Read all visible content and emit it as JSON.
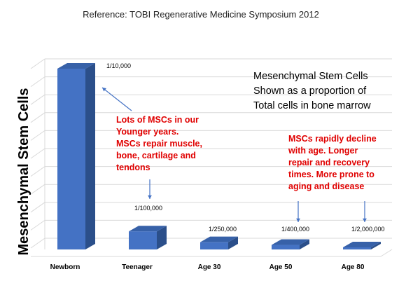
{
  "chart_data": {
    "type": "bar",
    "title": "Reference: TOBI Regenerative Medicine Symposium 2012",
    "ylabel": "Mesenchymal Stem Cells",
    "xlabel": "",
    "categories": [
      "Newborn",
      "Teenager",
      "Age 30",
      "Age 50",
      "Age 80"
    ],
    "values": [
      100000,
      10000,
      4000,
      2500,
      500
    ],
    "ylim": [
      0,
      100000
    ],
    "scale_note": "bar height shows MSCs per 1,000,000,000 total bone marrow cells",
    "value_labels": [
      "1/10,000",
      "1/100,000",
      "1/250,000",
      "1/400,000",
      "1/2,000,000"
    ],
    "grid": true,
    "legend": "none",
    "annotations": [
      {
        "id": "description",
        "lines": [
          "Mesenchymal Stem Cells",
          "Shown as a proportion of",
          "Total cells in bone marrow"
        ],
        "color": "#000000"
      },
      {
        "id": "young",
        "lines": [
          "Lots of MSCs in our",
          "Younger years.",
          "MSCs repair muscle,",
          "bone, cartilage and",
          "tendons"
        ],
        "color": "#e00000"
      },
      {
        "id": "decline",
        "lines": [
          "MSCs rapidly decline",
          "with age. Longer",
          "repair and recovery",
          "times. More prone to",
          "aging and disease"
        ],
        "color": "#e00000"
      }
    ]
  },
  "colors": {
    "bar_front": "#4472c4",
    "bar_top": "#3761a8",
    "bar_side": "#2b4f8a",
    "grid": "#d9d9d9",
    "arrow": "#4472c4"
  }
}
